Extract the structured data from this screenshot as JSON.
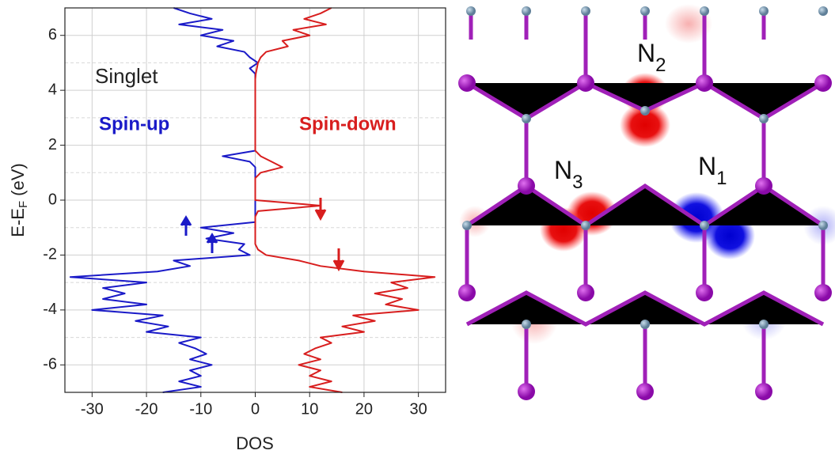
{
  "chart_data": {
    "type": "line",
    "orientation": "horizontal",
    "x_label": "DOS",
    "y_label": {
      "main": "E-E",
      "sub": "F",
      "unit": "(eV)"
    },
    "annotations": {
      "state": "Singlet",
      "up": "Spin-up",
      "down": "Spin-down"
    },
    "xlim": [
      -35,
      35
    ],
    "xticks": [
      -30,
      -20,
      -10,
      0,
      10,
      20,
      30
    ],
    "ylim": [
      -7,
      7
    ],
    "yticks": [
      -6,
      -4,
      -2,
      0,
      2,
      4,
      6
    ],
    "grid": true,
    "energies": [
      7,
      6.8,
      6.6,
      6.4,
      6.2,
      6,
      5.8,
      5.6,
      5.4,
      5.2,
      5,
      4.8,
      4.6,
      4.4,
      4.2,
      4,
      3.8,
      3.6,
      3.4,
      3.2,
      3,
      2.8,
      2.6,
      2.4,
      2.2,
      2,
      1.8,
      1.6,
      1.4,
      1.2,
      1,
      0.8,
      0.6,
      0.4,
      0.2,
      0,
      -0.2,
      -0.4,
      -0.6,
      -0.8,
      -1,
      -1.2,
      -1.4,
      -1.6,
      -1.8,
      -2,
      -2.2,
      -2.4,
      -2.6,
      -2.8,
      -3,
      -3.2,
      -3.4,
      -3.6,
      -3.8,
      -4,
      -4.2,
      -4.4,
      -4.6,
      -4.8,
      -5,
      -5.2,
      -5.4,
      -5.6,
      -5.8,
      -6,
      -6.2,
      -6.4,
      -6.6,
      -6.8,
      -7
    ],
    "series": [
      {
        "name": "Spin-up",
        "color": "#1a1ac8",
        "values": [
          -15,
          -12,
          -8,
          -14,
          -6,
          -10,
          -4,
          -7,
          -2,
          -1,
          0.5,
          -1,
          0,
          0,
          0,
          0,
          0,
          0,
          0,
          0,
          0,
          0,
          0,
          0,
          0,
          0,
          0,
          -6,
          -1,
          0,
          0,
          0,
          0,
          0,
          0,
          0,
          0,
          0,
          0,
          0,
          -10,
          -4,
          -9,
          -2,
          -3,
          -1,
          -15,
          -12,
          -18,
          -34,
          -20,
          -28,
          -24,
          -28,
          -20,
          -30,
          -17,
          -22,
          -16,
          -20,
          -10,
          -14,
          -11,
          -9,
          -12,
          -8,
          -12,
          -10,
          -14,
          -10,
          -17
        ]
      },
      {
        "name": "Spin-down",
        "color": "#d81e1e",
        "values": [
          14,
          12,
          9,
          13,
          7,
          10,
          5,
          6,
          2,
          1,
          0.5,
          0.3,
          0.1,
          0,
          0,
          0,
          0,
          0,
          0,
          0,
          0,
          0,
          0,
          0,
          0,
          0,
          0,
          1,
          3,
          5,
          1,
          0,
          0,
          0,
          0,
          0,
          12,
          0.5,
          0,
          0,
          0,
          0,
          0,
          0,
          0.5,
          2,
          8,
          12,
          20,
          33,
          25,
          28,
          22,
          27,
          24,
          30,
          18,
          22,
          16,
          20,
          12,
          14,
          11,
          9,
          12,
          8,
          12,
          10,
          14,
          10,
          16
        ]
      }
    ]
  },
  "structure": {
    "labels": [
      {
        "main": "N",
        "sub": "2"
      },
      {
        "main": "N",
        "sub": "3"
      },
      {
        "main": "N",
        "sub": "1"
      }
    ]
  }
}
